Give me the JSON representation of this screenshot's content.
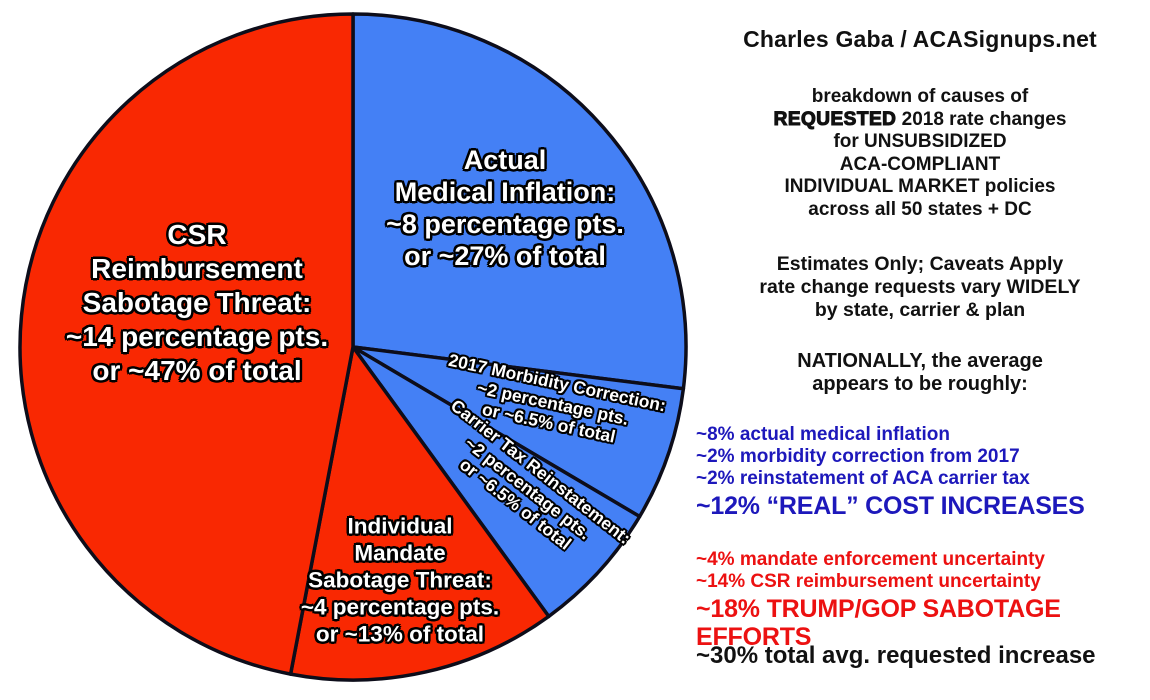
{
  "chart_data": {
    "type": "pie",
    "title": "breakdown of causes of REQUESTED 2018 rate changes",
    "units": "percentage points of requested average rate increase",
    "start_position": "12 o'clock, clockwise",
    "outline_color": "#0d0d1a",
    "colors": {
      "blue_slice": "#4480f5",
      "red_slice": "#f92802"
    },
    "slices": [
      {
        "name": "Actual Medical Inflation",
        "percentage_pts": 8,
        "share_pct": 27,
        "color": "#4480f5",
        "label_lines": [
          "Actual",
          "Medical Inflation:",
          "~8 percentage pts.",
          "or ~27% of total"
        ]
      },
      {
        "name": "2017 Morbidity Correction",
        "percentage_pts": 2,
        "share_pct": 6.5,
        "color": "#4480f5",
        "label_lines": [
          "2017 Morbidity Correction:",
          "~2 percentage pts.",
          "or ~6.5% of total"
        ]
      },
      {
        "name": "Carrier Tax Reinstatement",
        "percentage_pts": 2,
        "share_pct": 6.5,
        "color": "#4480f5",
        "label_lines": [
          "Carrier Tax Reinstatement:",
          "~2 percentage pts.",
          "or ~6.5% of total"
        ]
      },
      {
        "name": "Individual Mandate Sabotage Threat",
        "percentage_pts": 4,
        "share_pct": 13,
        "color": "#f92802",
        "label_lines": [
          "Individual",
          "Mandate",
          "Sabotage Threat:",
          "~4 percentage pts.",
          "or ~13% of total"
        ]
      },
      {
        "name": "CSR Reimbursement Sabotage Threat",
        "percentage_pts": 14,
        "share_pct": 47,
        "color": "#f92802",
        "label_lines": [
          "CSR",
          "Reimbursement",
          "Sabotage Threat:",
          "~14 percentage pts.",
          "or ~47% of total"
        ]
      }
    ]
  },
  "right_panel": {
    "attribution": "Charles Gaba / ACASignups.net",
    "description": {
      "line1": "breakdown of causes of",
      "line2_strong": "REQUESTED",
      "line2_rest": " 2018 rate changes",
      "line3": "for UNSUBSIDIZED",
      "line4": "ACA-COMPLIANT",
      "line5": "INDIVIDUAL MARKET policies",
      "line6": "across all 50 states + DC"
    },
    "caveats": {
      "line1": "Estimates Only; Caveats Apply",
      "line2": "rate change requests vary WIDELY",
      "line3": "by state, carrier & plan"
    },
    "nationally": {
      "line1": "NATIONALLY, the average",
      "line2": "appears to be roughly:"
    },
    "real_costs": {
      "color": "#1d18bb",
      "items": [
        "~8% actual medical inflation",
        "~2% morbidity correction from 2017",
        "~2% reinstatement of ACA carrier tax"
      ],
      "total": "~12% “REAL” COST INCREASES"
    },
    "sabotage": {
      "color": "#ec1111",
      "items": [
        "~4% mandate enforcement uncertainty",
        "~14% CSR reimbursement uncertainty"
      ],
      "total": "~18% TRUMP/GOP SABOTAGE EFFORTS"
    },
    "grand_total": "~30% total avg. requested increase"
  }
}
